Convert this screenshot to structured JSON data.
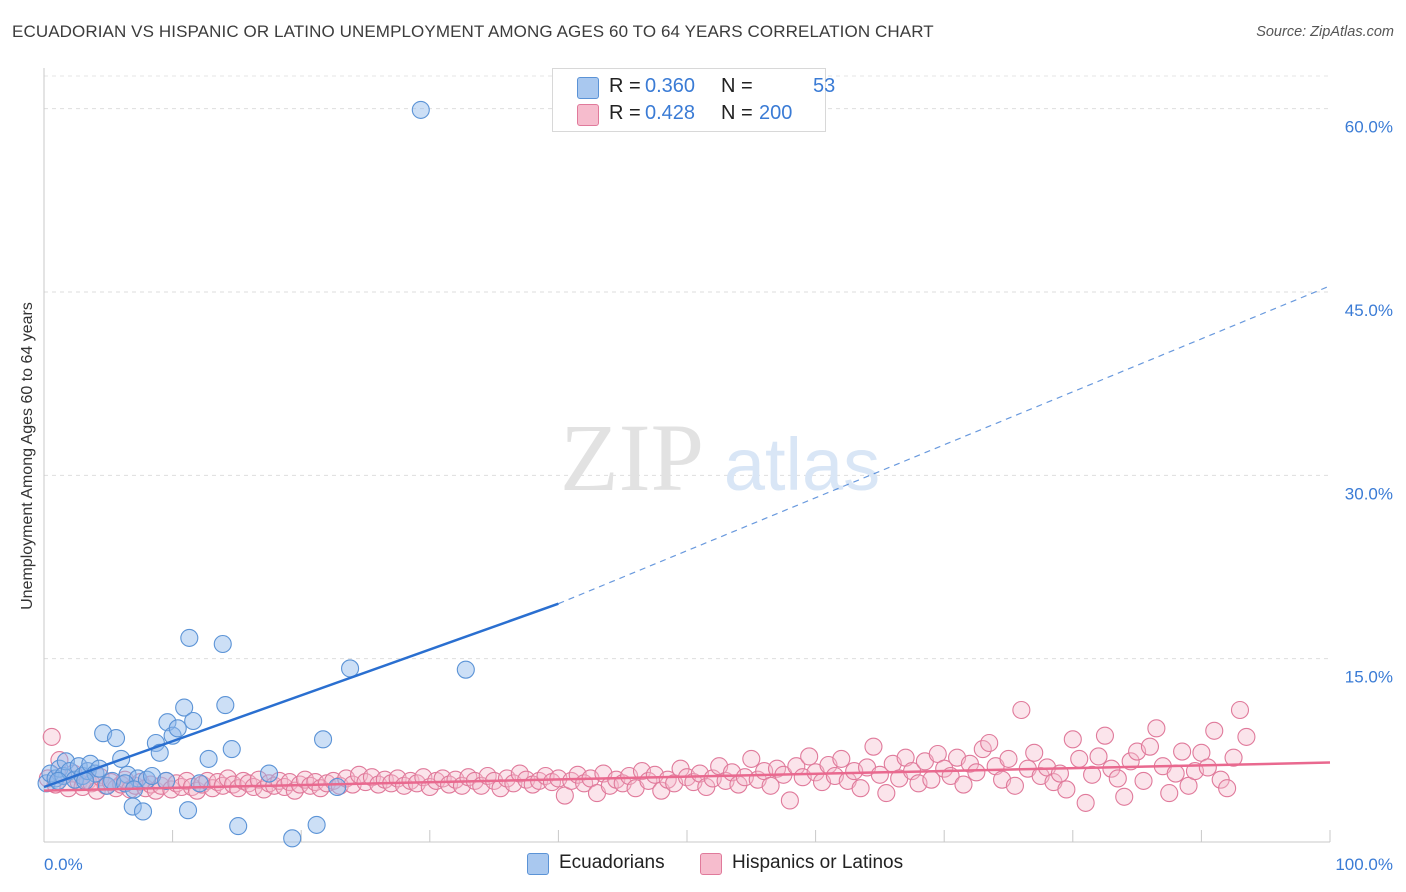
{
  "title": "ECUADORIAN VS HISPANIC OR LATINO UNEMPLOYMENT AMONG AGES 60 TO 64 YEARS CORRELATION CHART",
  "source": "Source: ZipAtlas.com",
  "watermark": {
    "zip": "ZIP",
    "atlas": "atlas"
  },
  "legend": [
    {
      "r_label": "R =",
      "r_value": "0.360",
      "n_label": "N =",
      "n_value": "53",
      "color": "#a9c8ef",
      "border": "#5b93d6"
    },
    {
      "r_label": "R =",
      "r_value": "0.428",
      "n_label": "N =",
      "n_value": "200",
      "color": "#f6bccd",
      "border": "#e07a9b"
    }
  ],
  "bottom_legend": [
    {
      "label": "Ecuadorians",
      "color": "#a9c8ef",
      "border": "#5b93d6"
    },
    {
      "label": "Hispanics or Latinos",
      "color": "#f6bccd",
      "border": "#e07a9b"
    }
  ],
  "chart_data": {
    "type": "scatter",
    "xlabel": "",
    "ylabel": "Unemployment Among Ages 60 to 64 years",
    "xlim": [
      0,
      100
    ],
    "ylim": [
      0,
      63
    ],
    "x_tick_labels": [
      {
        "value": 0,
        "label": "0.0%"
      },
      {
        "value": 100,
        "label": "100.0%"
      }
    ],
    "y_tick_labels": [
      {
        "value": 15,
        "label": "15.0%"
      },
      {
        "value": 30,
        "label": "30.0%"
      },
      {
        "value": 45,
        "label": "45.0%"
      },
      {
        "value": 60,
        "label": "60.0%"
      }
    ],
    "grid": "dashed horizontal",
    "series": [
      {
        "name": "Ecuadorians",
        "color": "#5b93d6",
        "fill": "rgba(142,185,236,0.45)",
        "trend": {
          "x0": 0,
          "y0": 4.5,
          "x1": 40,
          "y1": 19.5,
          "x_dash_end": 100,
          "y_dash_end": 45.5,
          "color": "#2a6fd0"
        },
        "points": [
          [
            0.2,
            4.8
          ],
          [
            0.5,
            5.6
          ],
          [
            0.9,
            5.2
          ],
          [
            1.2,
            6.0
          ],
          [
            1.5,
            5.4
          ],
          [
            1.7,
            6.6
          ],
          [
            2.0,
            5.8
          ],
          [
            2.4,
            5.1
          ],
          [
            2.7,
            6.2
          ],
          [
            3.0,
            5.4
          ],
          [
            3.4,
            5.8
          ],
          [
            3.6,
            6.4
          ],
          [
            4.0,
            5.6
          ],
          [
            4.3,
            6.0
          ],
          [
            4.6,
            8.9
          ],
          [
            4.9,
            4.6
          ],
          [
            5.3,
            5.0
          ],
          [
            5.6,
            8.5
          ],
          [
            6.0,
            6.8
          ],
          [
            6.5,
            5.5
          ],
          [
            6.9,
            2.9
          ],
          [
            7.3,
            5.2
          ],
          [
            7.7,
            2.5
          ],
          [
            8.0,
            5.1
          ],
          [
            8.4,
            5.4
          ],
          [
            8.7,
            8.1
          ],
          [
            9.0,
            7.3
          ],
          [
            9.6,
            9.8
          ],
          [
            10.0,
            8.7
          ],
          [
            10.4,
            9.3
          ],
          [
            10.9,
            11.0
          ],
          [
            11.3,
            16.7
          ],
          [
            11.6,
            9.9
          ],
          [
            12.1,
            4.8
          ],
          [
            12.8,
            6.8
          ],
          [
            13.9,
            16.2
          ],
          [
            14.1,
            11.2
          ],
          [
            14.6,
            7.6
          ],
          [
            17.5,
            5.6
          ],
          [
            19.3,
            0.3
          ],
          [
            21.2,
            1.4
          ],
          [
            21.7,
            8.4
          ],
          [
            22.8,
            4.5
          ],
          [
            23.8,
            14.2
          ],
          [
            29.3,
            59.9
          ],
          [
            32.8,
            14.1
          ],
          [
            9.5,
            5.0
          ],
          [
            6.3,
            4.8
          ],
          [
            3.2,
            5.0
          ],
          [
            1.1,
            5.0
          ],
          [
            7.0,
            4.3
          ],
          [
            11.2,
            2.6
          ],
          [
            15.1,
            1.3
          ]
        ]
      },
      {
        "name": "Hispanics or Latinos",
        "color": "#e07a9b",
        "fill": "rgba(246,188,205,0.4)",
        "trend": {
          "x0": 0,
          "y0": 4.2,
          "x1": 100,
          "y1": 6.5,
          "color": "#e9698f"
        },
        "points": [
          [
            0.3,
            5.2
          ],
          [
            0.6,
            8.6
          ],
          [
            0.9,
            4.7
          ],
          [
            1.2,
            6.7
          ],
          [
            1.5,
            5.4
          ],
          [
            1.9,
            4.4
          ],
          [
            2.3,
            5.6
          ],
          [
            2.7,
            4.9
          ],
          [
            3.0,
            4.5
          ],
          [
            3.4,
            5.0
          ],
          [
            3.7,
            4.8
          ],
          [
            4.1,
            4.2
          ],
          [
            4.4,
            5.3
          ],
          [
            4.8,
            4.6
          ],
          [
            5.2,
            4.9
          ],
          [
            5.6,
            4.4
          ],
          [
            6.0,
            4.7
          ],
          [
            6.3,
            5.1
          ],
          [
            6.7,
            4.3
          ],
          [
            7.1,
            4.6
          ],
          [
            7.5,
            4.9
          ],
          [
            7.9,
            4.4
          ],
          [
            8.3,
            4.7
          ],
          [
            8.7,
            4.2
          ],
          [
            9.1,
            4.6
          ],
          [
            9.5,
            5.0
          ],
          [
            9.9,
            4.3
          ],
          [
            10.3,
            4.8
          ],
          [
            10.7,
            4.5
          ],
          [
            11.1,
            5.0
          ],
          [
            11.5,
            4.5
          ],
          [
            11.9,
            4.2
          ],
          [
            12.3,
            4.7
          ],
          [
            12.7,
            5.0
          ],
          [
            13.1,
            4.4
          ],
          [
            13.5,
            4.9
          ],
          [
            13.9,
            4.6
          ],
          [
            14.3,
            5.2
          ],
          [
            14.7,
            4.7
          ],
          [
            15.1,
            4.4
          ],
          [
            15.5,
            5.0
          ],
          [
            15.9,
            4.8
          ],
          [
            16.3,
            4.5
          ],
          [
            16.7,
            5.1
          ],
          [
            17.1,
            4.3
          ],
          [
            17.5,
            4.8
          ],
          [
            17.9,
            4.6
          ],
          [
            18.3,
            5.0
          ],
          [
            18.7,
            4.5
          ],
          [
            19.1,
            4.9
          ],
          [
            19.5,
            4.2
          ],
          [
            19.9,
            4.7
          ],
          [
            20.3,
            5.1
          ],
          [
            20.7,
            4.6
          ],
          [
            21.1,
            4.9
          ],
          [
            21.5,
            4.4
          ],
          [
            22.0,
            4.8
          ],
          [
            22.5,
            5.0
          ],
          [
            23.0,
            4.6
          ],
          [
            23.5,
            5.2
          ],
          [
            24.0,
            4.7
          ],
          [
            24.5,
            5.5
          ],
          [
            25.0,
            4.9
          ],
          [
            25.5,
            5.3
          ],
          [
            26.0,
            4.7
          ],
          [
            26.5,
            5.1
          ],
          [
            27.0,
            4.8
          ],
          [
            27.5,
            5.2
          ],
          [
            28.0,
            4.6
          ],
          [
            28.5,
            5.0
          ],
          [
            29.0,
            4.8
          ],
          [
            29.5,
            5.3
          ],
          [
            30.0,
            4.5
          ],
          [
            30.5,
            5.0
          ],
          [
            31.0,
            5.2
          ],
          [
            31.5,
            4.7
          ],
          [
            32.0,
            5.1
          ],
          [
            32.5,
            4.6
          ],
          [
            33.0,
            5.3
          ],
          [
            33.5,
            5.0
          ],
          [
            34.0,
            4.6
          ],
          [
            34.5,
            5.4
          ],
          [
            35.0,
            5.0
          ],
          [
            35.5,
            4.4
          ],
          [
            36.0,
            5.2
          ],
          [
            36.5,
            4.8
          ],
          [
            37.0,
            5.6
          ],
          [
            37.5,
            5.1
          ],
          [
            38.0,
            4.7
          ],
          [
            38.5,
            5.0
          ],
          [
            39.0,
            5.4
          ],
          [
            39.5,
            4.9
          ],
          [
            40.0,
            5.2
          ],
          [
            40.5,
            3.8
          ],
          [
            41.0,
            5.0
          ],
          [
            41.5,
            5.5
          ],
          [
            42.0,
            4.8
          ],
          [
            42.5,
            5.2
          ],
          [
            43.0,
            4.0
          ],
          [
            43.5,
            5.6
          ],
          [
            44.0,
            4.6
          ],
          [
            44.5,
            5.1
          ],
          [
            45.0,
            4.8
          ],
          [
            45.5,
            5.4
          ],
          [
            46.0,
            4.4
          ],
          [
            46.5,
            5.8
          ],
          [
            47.0,
            5.0
          ],
          [
            47.5,
            5.5
          ],
          [
            48.0,
            4.2
          ],
          [
            48.5,
            5.1
          ],
          [
            49.0,
            4.8
          ],
          [
            49.5,
            6.0
          ],
          [
            50.0,
            5.3
          ],
          [
            50.5,
            4.9
          ],
          [
            51.0,
            5.6
          ],
          [
            51.5,
            4.5
          ],
          [
            52.0,
            5.2
          ],
          [
            52.5,
            6.2
          ],
          [
            53.0,
            5.0
          ],
          [
            53.5,
            5.7
          ],
          [
            54.0,
            4.7
          ],
          [
            54.5,
            5.3
          ],
          [
            55.0,
            6.8
          ],
          [
            55.5,
            5.1
          ],
          [
            56.0,
            5.8
          ],
          [
            56.5,
            4.6
          ],
          [
            57.0,
            6.0
          ],
          [
            57.5,
            5.5
          ],
          [
            58.0,
            3.4
          ],
          [
            58.5,
            6.2
          ],
          [
            59.0,
            5.3
          ],
          [
            59.5,
            7.0
          ],
          [
            60.0,
            5.7
          ],
          [
            60.5,
            4.9
          ],
          [
            61.0,
            6.3
          ],
          [
            61.5,
            5.4
          ],
          [
            62.0,
            6.8
          ],
          [
            62.5,
            5.0
          ],
          [
            63.0,
            5.8
          ],
          [
            63.5,
            4.4
          ],
          [
            64.0,
            6.1
          ],
          [
            64.5,
            7.8
          ],
          [
            65.0,
            5.5
          ],
          [
            65.5,
            4.0
          ],
          [
            66.0,
            6.4
          ],
          [
            66.5,
            5.2
          ],
          [
            67.0,
            6.9
          ],
          [
            67.5,
            5.8
          ],
          [
            68.0,
            4.8
          ],
          [
            68.5,
            6.6
          ],
          [
            69.0,
            5.1
          ],
          [
            69.5,
            7.2
          ],
          [
            70.0,
            6.0
          ],
          [
            70.5,
            5.4
          ],
          [
            71.0,
            6.9
          ],
          [
            71.5,
            4.7
          ],
          [
            72.0,
            6.4
          ],
          [
            72.5,
            5.7
          ],
          [
            73.0,
            7.6
          ],
          [
            73.5,
            8.1
          ],
          [
            74.0,
            6.2
          ],
          [
            74.5,
            5.1
          ],
          [
            75.0,
            6.8
          ],
          [
            75.5,
            4.6
          ],
          [
            76.0,
            10.8
          ],
          [
            76.5,
            6.0
          ],
          [
            77.0,
            7.3
          ],
          [
            77.5,
            5.4
          ],
          [
            78.0,
            6.1
          ],
          [
            78.5,
            4.9
          ],
          [
            79.0,
            5.6
          ],
          [
            79.5,
            4.3
          ],
          [
            80.0,
            8.4
          ],
          [
            80.5,
            6.8
          ],
          [
            81.0,
            3.2
          ],
          [
            81.5,
            5.5
          ],
          [
            82.0,
            7.0
          ],
          [
            82.5,
            8.7
          ],
          [
            83.0,
            6.0
          ],
          [
            83.5,
            5.2
          ],
          [
            84.0,
            3.7
          ],
          [
            84.5,
            6.6
          ],
          [
            85.0,
            7.4
          ],
          [
            85.5,
            5.0
          ],
          [
            86.0,
            7.8
          ],
          [
            86.5,
            9.3
          ],
          [
            87.0,
            6.2
          ],
          [
            87.5,
            4.0
          ],
          [
            88.0,
            5.6
          ],
          [
            88.5,
            7.4
          ],
          [
            89.0,
            4.6
          ],
          [
            89.5,
            5.8
          ],
          [
            90.0,
            7.3
          ],
          [
            90.5,
            6.1
          ],
          [
            91.0,
            9.1
          ],
          [
            91.5,
            5.1
          ],
          [
            92.0,
            4.4
          ],
          [
            92.5,
            6.9
          ],
          [
            93.0,
            10.8
          ],
          [
            93.5,
            8.6
          ]
        ]
      }
    ]
  }
}
